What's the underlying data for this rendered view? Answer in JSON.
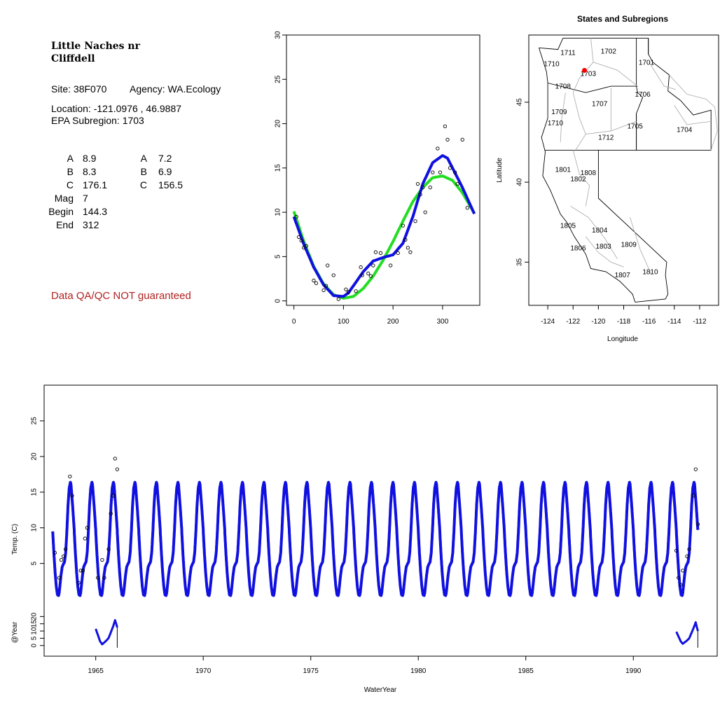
{
  "site_info": {
    "name_line1": "Little Naches nr",
    "name_line2": "Cliffdell",
    "site": "Site: 38F070",
    "agency": "Agency: WA.Ecology",
    "location": "Location: -121.0976 , 46.9887",
    "epa": "EPA Subregion: 1703",
    "params_left": [
      {
        "label": "A",
        "value": "8.9"
      },
      {
        "label": "B",
        "value": "8.3"
      },
      {
        "label": "C",
        "value": "176.1"
      },
      {
        "label": "Mag",
        "value": "7"
      },
      {
        "label": "Begin",
        "value": "144.3"
      },
      {
        "label": "End",
        "value": "312"
      }
    ],
    "params_right": [
      {
        "label": "A",
        "value": "7.2"
      },
      {
        "label": "B",
        "value": "6.9"
      },
      {
        "label": "C",
        "value": "156.5"
      }
    ],
    "qa_note": "Data QA/QC NOT guaranteed"
  },
  "colors": {
    "fit_blue": "#1010e0",
    "fit_green": "#22dd22",
    "site_marker": "#ff0000",
    "qa_text": "#b22222"
  },
  "chart_data": [
    {
      "type": "scatter",
      "id": "seasonal",
      "title": "",
      "xlabel": "",
      "ylabel": "",
      "xlim": [
        -15,
        375
      ],
      "ylim": [
        -0.5,
        30
      ],
      "xticks": [
        0,
        100,
        200,
        300
      ],
      "yticks": [
        0,
        5,
        10,
        15,
        20,
        25,
        30
      ],
      "points_x": [
        5,
        10,
        15,
        20,
        25,
        40,
        45,
        60,
        65,
        68,
        80,
        90,
        105,
        110,
        125,
        135,
        138,
        150,
        155,
        160,
        165,
        175,
        195,
        210,
        220,
        225,
        230,
        235,
        245,
        250,
        255,
        260,
        265,
        275,
        280,
        290,
        295,
        305,
        310,
        315,
        325,
        330,
        340,
        350
      ],
      "points_y": [
        9.5,
        7.2,
        6.8,
        6.0,
        6.2,
        2.3,
        2.0,
        1.2,
        1.7,
        4.0,
        2.9,
        0.2,
        1.3,
        1.0,
        1.1,
        3.8,
        2.9,
        3.1,
        2.8,
        4.0,
        5.5,
        5.4,
        4.0,
        5.4,
        8.5,
        6.9,
        6.0,
        5.5,
        9.0,
        13.2,
        12.0,
        12.8,
        10.0,
        12.8,
        14.5,
        17.2,
        14.5,
        19.7,
        18.2,
        15.0,
        14.5,
        13.2,
        18.2,
        10.5
      ],
      "series": [
        {
          "name": "",
          "color": "#22dd22",
          "x": [
            0,
            20,
            40,
            60,
            80,
            100,
            120,
            140,
            160,
            180,
            200,
            220,
            240,
            260,
            280,
            300,
            320,
            340,
            365
          ],
          "y": [
            10.1,
            6.7,
            3.9,
            1.9,
            0.7,
            0.3,
            0.5,
            1.4,
            2.8,
            4.6,
            6.7,
            9.0,
            11.2,
            12.8,
            13.9,
            14.1,
            13.6,
            12.2,
            9.8
          ]
        },
        {
          "name": "",
          "color": "#1010e0",
          "x": [
            0,
            20,
            40,
            60,
            80,
            100,
            110,
            120,
            140,
            160,
            180,
            200,
            220,
            240,
            260,
            280,
            300,
            310,
            320,
            340,
            365
          ],
          "y": [
            9.5,
            6.4,
            3.8,
            1.8,
            0.6,
            0.5,
            0.9,
            1.7,
            3.3,
            4.5,
            4.9,
            5.2,
            6.5,
            9.5,
            13.2,
            15.6,
            16.4,
            16.1,
            15.0,
            12.8,
            9.7
          ]
        }
      ]
    },
    {
      "type": "map",
      "id": "regions",
      "title": "States and Subregions",
      "xlabel": "Longitude",
      "ylabel": "Latitude",
      "xlim": [
        -125.5,
        -110.5
      ],
      "ylim": [
        32.3,
        49.2
      ],
      "xticks": [
        -124,
        -122,
        -120,
        -118,
        -116,
        -114,
        -112
      ],
      "yticks": [
        35,
        40,
        45
      ],
      "site": {
        "lon": -121.0976,
        "lat": 46.9887
      },
      "region_labels": [
        {
          "text": "1711",
          "lon": -122.4,
          "lat": 48.1
        },
        {
          "text": "1702",
          "lon": -119.2,
          "lat": 48.2
        },
        {
          "text": "1710",
          "lon": -123.7,
          "lat": 47.4
        },
        {
          "text": "1701",
          "lon": -116.2,
          "lat": 47.5
        },
        {
          "text": "1703",
          "lon": -120.8,
          "lat": 46.8
        },
        {
          "text": "1708",
          "lon": -122.8,
          "lat": 46.0
        },
        {
          "text": "1706",
          "lon": -116.5,
          "lat": 45.5
        },
        {
          "text": "1707",
          "lon": -119.9,
          "lat": 44.9
        },
        {
          "text": "1709",
          "lon": -123.1,
          "lat": 44.4
        },
        {
          "text": "1710",
          "lon": -123.4,
          "lat": 43.7
        },
        {
          "text": "1705",
          "lon": -117.1,
          "lat": 43.5
        },
        {
          "text": "1704",
          "lon": -113.2,
          "lat": 43.3
        },
        {
          "text": "1712",
          "lon": -119.4,
          "lat": 42.8
        },
        {
          "text": "1801",
          "lon": -122.8,
          "lat": 40.8
        },
        {
          "text": "1808",
          "lon": -120.8,
          "lat": 40.6
        },
        {
          "text": "1802",
          "lon": -121.6,
          "lat": 40.2
        },
        {
          "text": "1805",
          "lon": -122.4,
          "lat": 37.3
        },
        {
          "text": "1804",
          "lon": -119.9,
          "lat": 37.0
        },
        {
          "text": "1806",
          "lon": -121.6,
          "lat": 35.9
        },
        {
          "text": "1803",
          "lon": -119.6,
          "lat": 36.0
        },
        {
          "text": "1809",
          "lon": -117.6,
          "lat": 36.1
        },
        {
          "text": "1807",
          "lon": -118.1,
          "lat": 34.2
        },
        {
          "text": "1810",
          "lon": -115.9,
          "lat": 34.4
        }
      ]
    },
    {
      "type": "line",
      "id": "timeseries",
      "title": "",
      "xlabel": "WaterYear",
      "ylabel": "Temp. (C)",
      "xlim": [
        1962.6,
        1993.9
      ],
      "ylim": [
        -8,
        30
      ],
      "xticks": [
        1965,
        1970,
        1975,
        1980,
        1985,
        1990
      ],
      "yticks": [
        5,
        10,
        15,
        20,
        25
      ],
      "fit_years": [
        1963.0,
        1993.0
      ],
      "points_x": [
        1963.1,
        1963.3,
        1963.4,
        1963.5,
        1963.6,
        1963.8,
        1963.9,
        1964.2,
        1964.3,
        1964.4,
        1964.5,
        1964.6,
        1965.1,
        1965.3,
        1965.4,
        1965.6,
        1965.7,
        1965.8,
        1965.9,
        1966.0,
        1992.0,
        1992.1,
        1992.2,
        1992.3,
        1992.5,
        1992.6,
        1992.8,
        1992.9,
        1993.0
      ],
      "points_y": [
        6.5,
        3.0,
        5.5,
        6.0,
        7.0,
        17.2,
        14.5,
        2.3,
        4.0,
        4.0,
        8.5,
        10.0,
        3.0,
        5.5,
        3.0,
        7.0,
        12.0,
        14.5,
        19.7,
        18.2,
        6.8,
        3.0,
        2.0,
        4.0,
        6.0,
        7.0,
        14.5,
        18.2,
        10.5
      ]
    },
    {
      "type": "line",
      "id": "at-year",
      "title": "",
      "xlabel": "",
      "ylabel": "@Year",
      "ylim": [
        -3,
        25
      ],
      "yticks": [
        0,
        5,
        10,
        15,
        20
      ],
      "year_segments": [
        {
          "x": [
            1965.0,
            1965.2,
            1965.3,
            1965.5,
            1965.6,
            1965.8,
            1965.9,
            1966.0
          ],
          "y": [
            11.5,
            3.0,
            0.8,
            3.5,
            5.2,
            12.8,
            17.5,
            12.5
          ]
        },
        {
          "x": [
            1992.0,
            1992.2,
            1992.3,
            1992.5,
            1992.6,
            1992.8,
            1992.9,
            1993.0
          ],
          "y": [
            9.5,
            3.0,
            1.2,
            3.5,
            5.0,
            12.0,
            16.0,
            10.0
          ]
        }
      ]
    }
  ]
}
